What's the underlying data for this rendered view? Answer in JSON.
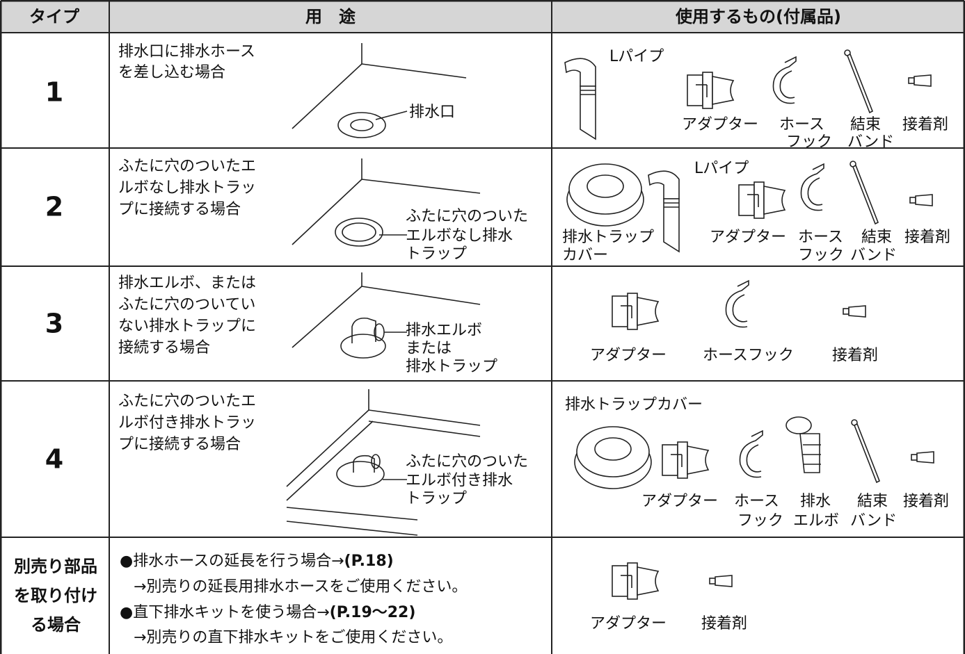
{
  "table": {
    "header": [
      "タイプ",
      "用　途",
      "使用するもの(付属品)"
    ],
    "rows": [
      {
        "type": "1",
        "usage": [
          "排水口に排水ホース",
          "を差し込む場合"
        ],
        "diagram_label": [
          "排水口"
        ],
        "parts": [
          [
            "Lパイプ"
          ],
          [
            "アダプター"
          ],
          [
            "ホース",
            "フック"
          ],
          [
            "結束",
            "バンド"
          ],
          [
            "接着剤"
          ]
        ]
      },
      {
        "type": "2",
        "usage": [
          "ふたに穴のついたエ",
          "ルボなし排水トラッ",
          "プに接続する場合"
        ],
        "diagram_label": [
          "ふたに穴のついた",
          "エルボなし排水",
          "トラップ"
        ],
        "parts": [
          [
            "排水トラップ",
            "カバー"
          ],
          [
            "Lパイプ"
          ],
          [
            "アダプター"
          ],
          [
            "ホース",
            "フック"
          ],
          [
            "結束",
            "バンド"
          ],
          [
            "接着剤"
          ]
        ]
      },
      {
        "type": "3",
        "usage": [
          "排水エルボ、または",
          "ふたに穴のついてい",
          "ない排水トラップに",
          "接続する場合"
        ],
        "diagram_label": [
          "排水エルボ",
          "または",
          "排水トラップ"
        ],
        "parts": [
          [
            "アダプター"
          ],
          [
            "ホースフック"
          ],
          [
            "接着剤"
          ]
        ]
      },
      {
        "type": "4",
        "usage": [
          "ふたに穴のついたエ",
          "ルボ付き排水トラッ",
          "プに接続する場合"
        ],
        "diagram_label": [
          "ふたに穴のついた",
          "エルボ付き排水",
          "トラップ"
        ],
        "parts": [
          [
            "排水トラップカバー"
          ],
          [
            "アダプター"
          ],
          [
            "ホース",
            "フック"
          ],
          [
            "排水",
            "エルボ"
          ],
          [
            "結束",
            "バンド"
          ],
          [
            "接着剤"
          ]
        ]
      },
      {
        "type": [
          "別売り部品",
          "を取り付け",
          "る場合"
        ],
        "usage": [
          {
            "text": "●排水ホースの延長を行う場合→",
            "ref": "(P.18)",
            "note": "→別売りの延長用排水ホースをご使用ください。"
          },
          {
            "text": "●直下排水キットを使う場合→",
            "ref": "(P.19〜22)",
            "note": "→別売りの直下排水キットをご使用ください。"
          }
        ],
        "parts": [
          [
            "アダプター"
          ],
          [
            "接着剤"
          ]
        ]
      }
    ]
  }
}
